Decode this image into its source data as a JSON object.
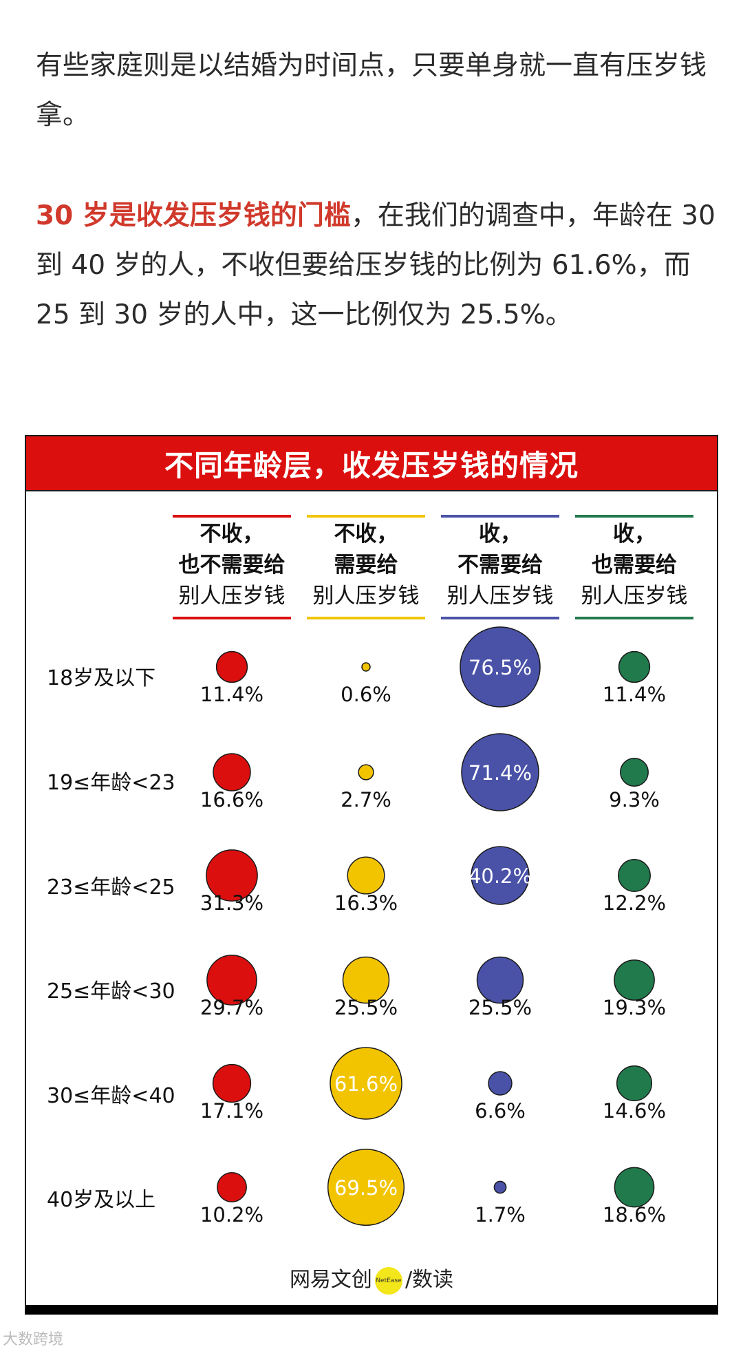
{
  "text": {
    "p1": "有些家庭则是以结婚为时间点，只要单身就一直有压岁钱拿。",
    "p2_highlight": "30 岁是收发压岁钱的门槛",
    "p2_rest": "，在我们的调查中，年龄在 30 到 40 岁的人，不收但要给压岁钱的比例为 61.6%，而 25 到 30 岁的人中，这一比例仅为 25.5%。"
  },
  "colors": {
    "red": "#dc0f0f",
    "yellow": "#f2c400",
    "blue": "#4a52a8",
    "green": "#217a4c"
  },
  "chart_data": {
    "type": "bubble-table",
    "title": "不同年龄层，收发压岁钱的情况",
    "columns": [
      {
        "line1": "不收，",
        "line2": "也不需要给",
        "line3": "别人压岁钱",
        "color": "#dc0f0f"
      },
      {
        "line1": "不收，",
        "line2": "需要给",
        "line3": "别人压岁钱",
        "color": "#f2c400"
      },
      {
        "line1": "收，",
        "line2": "不需要给",
        "line3": "别人压岁钱",
        "color": "#4a52a8"
      },
      {
        "line1": "收，",
        "line2": "也需要给",
        "line3": "别人压岁钱",
        "color": "#217a4c"
      }
    ],
    "rows": [
      "18岁及以下",
      "19≤年龄<23",
      "23≤年龄<25",
      "25≤年龄<30",
      "30≤年龄<40",
      "40岁及以上"
    ],
    "values": [
      [
        11.4,
        0.6,
        76.5,
        11.4
      ],
      [
        16.6,
        2.7,
        71.4,
        9.3
      ],
      [
        31.3,
        16.3,
        40.2,
        12.2
      ],
      [
        29.7,
        25.5,
        25.5,
        19.3
      ],
      [
        17.1,
        61.6,
        6.6,
        14.6
      ],
      [
        10.2,
        69.5,
        1.7,
        18.6
      ]
    ],
    "labels": [
      [
        "11.4%",
        "0.6%",
        "76.5%",
        "11.4%"
      ],
      [
        "16.6%",
        "2.7%",
        "71.4%",
        "9.3%"
      ],
      [
        "31.3%",
        "16.3%",
        "40.2%",
        "12.2%"
      ],
      [
        "29.7%",
        "25.5%",
        "25.5%",
        "19.3%"
      ],
      [
        "17.1%",
        "61.6%",
        "6.6%",
        "14.6%"
      ],
      [
        "10.2%",
        "69.5%",
        "1.7%",
        "18.6%"
      ]
    ],
    "unit": "%"
  },
  "logo": {
    "left": "网易文创",
    "badge": "NetEase",
    "slash": "/",
    "right": "数读"
  },
  "watermark": "大数跨境"
}
